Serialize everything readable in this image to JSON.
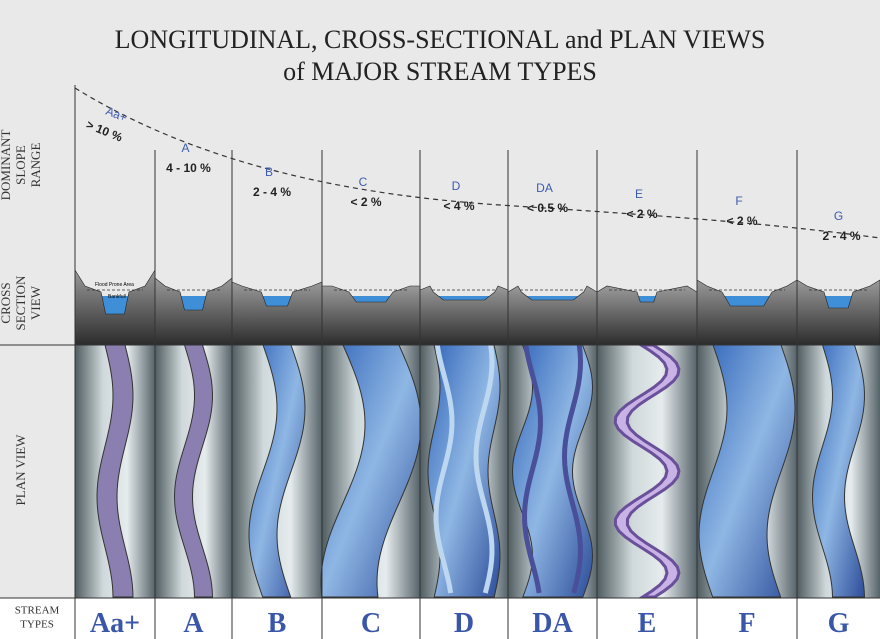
{
  "title": [
    "LONGITUDINAL, CROSS-SECTIONAL and PLAN VIEWS",
    "of MAJOR STREAM TYPES"
  ],
  "rows": {
    "slope": [
      "DOMINANT",
      "SLOPE",
      "RANGE"
    ],
    "cross_section": [
      "CROSS",
      "SECTION",
      "VIEW"
    ],
    "plan": [
      "PLAN VIEW"
    ],
    "types": [
      "STREAM",
      "TYPES"
    ]
  },
  "cross_section_labels": {
    "flood_prone": "Flood Prone Area",
    "bankfull": "Bankfull"
  },
  "columns": [
    {
      "type": "Aa+",
      "slope": "> 10 %"
    },
    {
      "type": "A",
      "slope": "4 - 10 %"
    },
    {
      "type": "B",
      "slope": "2 - 4 %"
    },
    {
      "type": "C",
      "slope": "< 2 %"
    },
    {
      "type": "D",
      "slope": "< 4 %"
    },
    {
      "type": "DA",
      "slope": "< 0.5 %"
    },
    {
      "type": "E",
      "slope": "< 2 %"
    },
    {
      "type": "F",
      "slope": "< 2 %"
    },
    {
      "type": "G",
      "slope": "2 - 4 %"
    }
  ]
}
